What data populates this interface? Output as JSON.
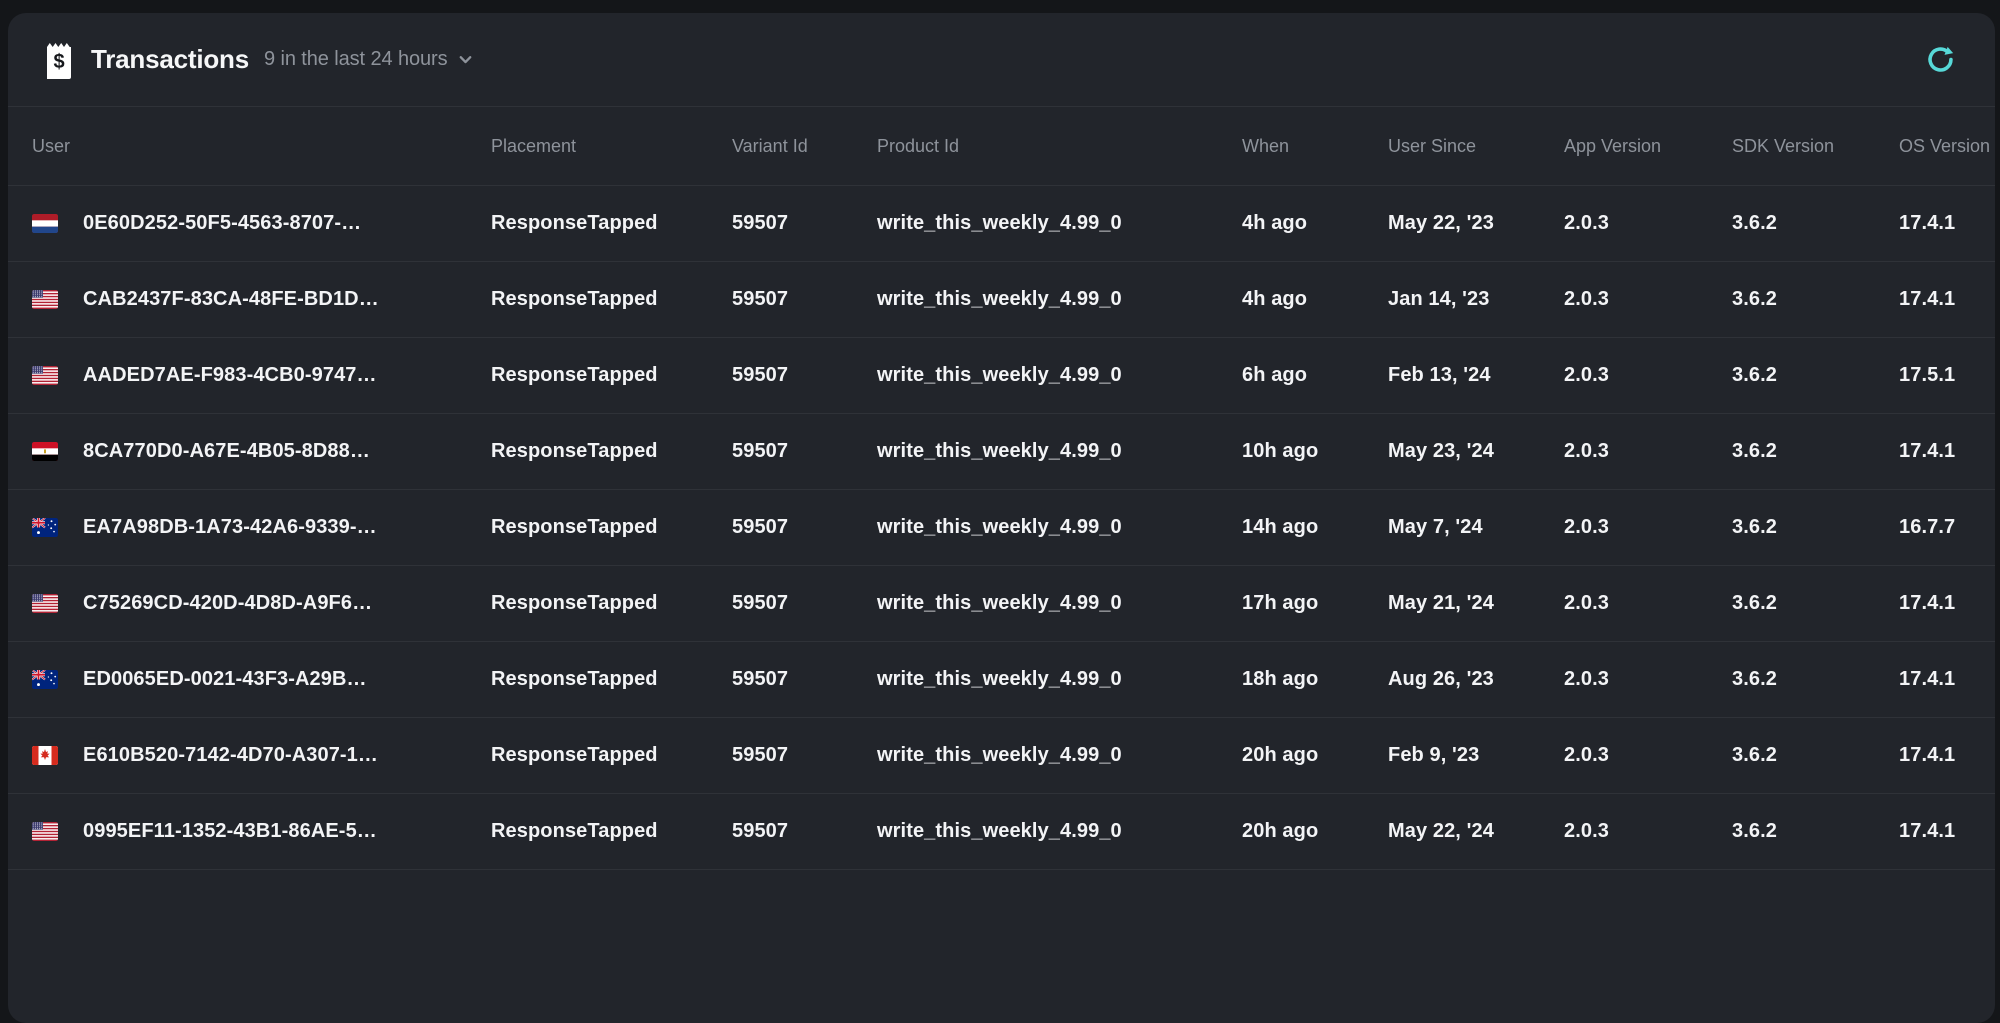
{
  "panel": {
    "title": "Transactions",
    "subtitle": "9 in the last 24 hours",
    "title_icon": "receipt-dollar-icon",
    "refresh_icon": "refresh-icon",
    "dropdown_icon": "chevron-down-icon"
  },
  "colors": {
    "page_bg": "#141619",
    "card_bg": "#22252b",
    "separator": "#2f3238",
    "muted_text": "#8e939b",
    "cell_text": "#f3f4f6",
    "accent_teal": "#57d9d8"
  },
  "table": {
    "columns": [
      {
        "key": "user",
        "label": "User"
      },
      {
        "key": "placement",
        "label": "Placement"
      },
      {
        "key": "variant_id",
        "label": "Variant Id"
      },
      {
        "key": "product_id",
        "label": "Product Id"
      },
      {
        "key": "when",
        "label": "When"
      },
      {
        "key": "user_since",
        "label": "User Since"
      },
      {
        "key": "app_version",
        "label": "App Version"
      },
      {
        "key": "sdk_version",
        "label": "SDK Version"
      },
      {
        "key": "os_version",
        "label": "OS Version"
      }
    ],
    "rows": [
      {
        "flag": "nl",
        "user": "0E60D252-50F5-4563-8707-…",
        "placement": "ResponseTapped",
        "variant_id": "59507",
        "product_id": "write_this_weekly_4.99_0",
        "when": "4h ago",
        "user_since": "May 22, '23",
        "app_version": "2.0.3",
        "sdk_version": "3.6.2",
        "os_version": "17.4.1"
      },
      {
        "flag": "us",
        "user": "CAB2437F-83CA-48FE-BD1D…",
        "placement": "ResponseTapped",
        "variant_id": "59507",
        "product_id": "write_this_weekly_4.99_0",
        "when": "4h ago",
        "user_since": "Jan 14, '23",
        "app_version": "2.0.3",
        "sdk_version": "3.6.2",
        "os_version": "17.4.1"
      },
      {
        "flag": "us",
        "user": "AADED7AE-F983-4CB0-9747…",
        "placement": "ResponseTapped",
        "variant_id": "59507",
        "product_id": "write_this_weekly_4.99_0",
        "when": "6h ago",
        "user_since": "Feb 13, '24",
        "app_version": "2.0.3",
        "sdk_version": "3.6.2",
        "os_version": "17.5.1"
      },
      {
        "flag": "eg",
        "user": "8CA770D0-A67E-4B05-8D88…",
        "placement": "ResponseTapped",
        "variant_id": "59507",
        "product_id": "write_this_weekly_4.99_0",
        "when": "10h ago",
        "user_since": "May 23, '24",
        "app_version": "2.0.3",
        "sdk_version": "3.6.2",
        "os_version": "17.4.1"
      },
      {
        "flag": "au",
        "user": "EA7A98DB-1A73-42A6-9339-…",
        "placement": "ResponseTapped",
        "variant_id": "59507",
        "product_id": "write_this_weekly_4.99_0",
        "when": "14h ago",
        "user_since": "May 7, '24",
        "app_version": "2.0.3",
        "sdk_version": "3.6.2",
        "os_version": "16.7.7"
      },
      {
        "flag": "us",
        "user": "C75269CD-420D-4D8D-A9F6…",
        "placement": "ResponseTapped",
        "variant_id": "59507",
        "product_id": "write_this_weekly_4.99_0",
        "when": "17h ago",
        "user_since": "May 21, '24",
        "app_version": "2.0.3",
        "sdk_version": "3.6.2",
        "os_version": "17.4.1"
      },
      {
        "flag": "au",
        "user": "ED0065ED-0021-43F3-A29B…",
        "placement": "ResponseTapped",
        "variant_id": "59507",
        "product_id": "write_this_weekly_4.99_0",
        "when": "18h ago",
        "user_since": "Aug 26, '23",
        "app_version": "2.0.3",
        "sdk_version": "3.6.2",
        "os_version": "17.4.1"
      },
      {
        "flag": "ca",
        "user": "E610B520-7142-4D70-A307-1…",
        "placement": "ResponseTapped",
        "variant_id": "59507",
        "product_id": "write_this_weekly_4.99_0",
        "when": "20h ago",
        "user_since": "Feb 9, '23",
        "app_version": "2.0.3",
        "sdk_version": "3.6.2",
        "os_version": "17.4.1"
      },
      {
        "flag": "us",
        "user": "0995EF11-1352-43B1-86AE-5…",
        "placement": "ResponseTapped",
        "variant_id": "59507",
        "product_id": "write_this_weekly_4.99_0",
        "when": "20h ago",
        "user_since": "May 22, '24",
        "app_version": "2.0.3",
        "sdk_version": "3.6.2",
        "os_version": "17.4.1"
      }
    ]
  }
}
